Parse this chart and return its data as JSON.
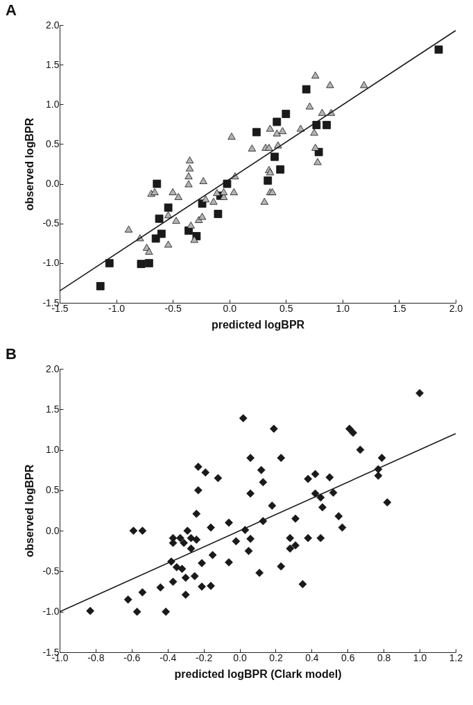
{
  "chart_data": [
    {
      "type": "scatter",
      "title": "A",
      "xlabel": "predicted logBPR",
      "ylabel": "observed logBPR",
      "xlim": [
        -1.5,
        2.0
      ],
      "ylim": [
        -1.5,
        2.0
      ],
      "xticks": [
        {
          "value": -1.5,
          "label": "-1.5"
        },
        {
          "value": -1.0,
          "label": "-1.0"
        },
        {
          "value": -0.5,
          "label": "-0.5"
        },
        {
          "value": 0,
          "label": "0.0"
        },
        {
          "value": 0.5,
          "label": "0.5"
        },
        {
          "value": 1.0,
          "label": "1.0"
        },
        {
          "value": 1.5,
          "label": "1.5"
        },
        {
          "value": 2.0,
          "label": "2.0"
        }
      ],
      "yticks": [
        {
          "value": -1.5,
          "label": "-1.5"
        },
        {
          "value": -1.0,
          "label": "-1.0"
        },
        {
          "value": -0.5,
          "label": "-0.5"
        },
        {
          "value": 0,
          "label": "0.0"
        },
        {
          "value": 0.5,
          "label": "0.5"
        },
        {
          "value": 1.0,
          "label": "1.0"
        },
        {
          "value": 1.5,
          "label": "1.5"
        },
        {
          "value": 2.0,
          "label": "2.0"
        }
      ],
      "series": [
        {
          "type": "scatter",
          "marker": "square",
          "color": "#1a1a1a",
          "x": [
            -1.14,
            -1.06,
            -0.78,
            -0.71,
            -0.65,
            -0.6,
            -0.62,
            -0.54,
            -0.64,
            -0.36,
            -0.29,
            -0.24,
            -0.1,
            -0.08,
            -0.02,
            0.24,
            0.68,
            0.5,
            0.42,
            0.77,
            0.86,
            0.4,
            0.45,
            0.34,
            0.79,
            1.85
          ],
          "values": [
            -1.29,
            -1.0,
            -1.01,
            -1.0,
            -0.69,
            -0.63,
            -0.44,
            -0.3,
            0.0,
            -0.59,
            -0.66,
            -0.25,
            -0.38,
            -0.15,
            0.0,
            0.65,
            1.19,
            0.88,
            0.78,
            0.74,
            0.74,
            0.34,
            0.18,
            0.04,
            0.4,
            1.69
          ]
        },
        {
          "type": "scatter",
          "marker": "triangle",
          "color": "#b4b4b4",
          "x": [
            -0.89,
            -0.79,
            -0.73,
            -0.71,
            -0.69,
            -0.66,
            -0.54,
            -0.54,
            -0.5,
            -0.47,
            -0.45,
            -0.35,
            -0.35,
            -0.36,
            -0.36,
            -0.34,
            -0.31,
            -0.27,
            -0.24,
            -0.23,
            -0.21,
            -0.14,
            -0.11,
            -0.05,
            -0.05,
            0.04,
            0.05,
            0.02,
            0.2,
            0.76,
            0.89,
            1.19,
            0.71,
            0.82,
            0.9,
            0.36,
            0.42,
            0.47,
            0.63,
            0.75,
            0.32,
            0.35,
            0.43,
            0.76,
            0.78,
            0.35,
            0.36,
            0.36,
            0.38,
            0.31
          ],
          "values": [
            -0.57,
            -0.68,
            -0.8,
            -0.85,
            -0.12,
            -0.1,
            -0.39,
            -0.76,
            -0.1,
            -0.46,
            -0.16,
            0.3,
            0.2,
            0.1,
            0.0,
            -0.52,
            -0.7,
            -0.45,
            -0.41,
            0.04,
            -0.19,
            -0.22,
            -0.11,
            -0.16,
            -0.1,
            -0.1,
            0.1,
            0.6,
            0.45,
            1.37,
            1.25,
            1.25,
            0.98,
            0.9,
            0.9,
            0.7,
            0.64,
            0.67,
            0.7,
            0.65,
            0.46,
            0.46,
            0.49,
            0.46,
            0.28,
            0.18,
            0.15,
            -0.1,
            -0.1,
            -0.22
          ]
        },
        {
          "type": "line",
          "color": "#1a1a1a",
          "x": [
            -1.5,
            2.0
          ],
          "values": [
            -1.35,
            1.93
          ]
        }
      ]
    },
    {
      "type": "scatter",
      "title": "B",
      "xlabel": "predicted logBPR (Clark model)",
      "ylabel": "observed logBPR",
      "xlim": [
        -1.0,
        1.2
      ],
      "ylim": [
        -1.5,
        2.0
      ],
      "xticks": [
        {
          "value": -1.0,
          "label": "-1.0"
        },
        {
          "value": -0.8,
          "label": "-0.8"
        },
        {
          "value": -0.6,
          "label": "-0.6"
        },
        {
          "value": -0.4,
          "label": "-0.4"
        },
        {
          "value": -0.2,
          "label": "-0.2"
        },
        {
          "value": 0,
          "label": "0.0"
        },
        {
          "value": 0.2,
          "label": "0.2"
        },
        {
          "value": 0.4,
          "label": "0.4"
        },
        {
          "value": 0.6,
          "label": "0.6"
        },
        {
          "value": 0.8,
          "label": "0.8"
        },
        {
          "value": 1.0,
          "label": "1.0"
        },
        {
          "value": 1.2,
          "label": "1.2"
        }
      ],
      "yticks": [
        {
          "value": -1.5,
          "label": "-1.5"
        },
        {
          "value": -1.0,
          "label": "-1.0"
        },
        {
          "value": -0.5,
          "label": "-0.5"
        },
        {
          "value": 0,
          "label": "0.0"
        },
        {
          "value": 0.5,
          "label": "0.5"
        },
        {
          "value": 1.0,
          "label": "1.0"
        },
        {
          "value": 1.5,
          "label": "1.5"
        },
        {
          "value": 2.0,
          "label": "2.0"
        }
      ],
      "series": [
        {
          "type": "scatter",
          "marker": "diamond",
          "color": "#1a1a1a",
          "x": [
            -0.83,
            -0.62,
            -0.57,
            -0.54,
            -0.59,
            -0.54,
            -0.44,
            -0.41,
            -0.37,
            -0.37,
            -0.33,
            -0.31,
            -0.29,
            -0.27,
            -0.24,
            -0.27,
            -0.38,
            -0.35,
            -0.32,
            -0.3,
            -0.37,
            -0.3,
            -0.25,
            -0.21,
            -0.16,
            -0.21,
            -0.15,
            -0.06,
            -0.16,
            -0.06,
            -0.24,
            -0.23,
            -0.23,
            -0.19,
            -0.12,
            0.02,
            0.06,
            0.06,
            0.03,
            0.06,
            -0.02,
            0.05,
            0.11,
            0.12,
            0.13,
            0.13,
            0.18,
            0.19,
            0.23,
            0.31,
            0.28,
            0.28,
            0.31,
            0.38,
            0.45,
            0.23,
            0.35,
            0.38,
            0.42,
            0.5,
            0.42,
            0.45,
            0.52,
            0.46,
            0.55,
            0.57,
            0.61,
            0.63,
            0.67,
            0.79,
            0.77,
            0.77,
            0.82,
            1.0
          ],
          "values": [
            -0.99,
            -0.85,
            -1.0,
            -0.76,
            0.0,
            0.0,
            -0.7,
            -1.0,
            -0.09,
            -0.15,
            -0.09,
            -0.15,
            0.0,
            -0.09,
            -0.11,
            -0.22,
            -0.38,
            -0.45,
            -0.47,
            -0.58,
            -0.63,
            -0.79,
            -0.56,
            -0.69,
            -0.68,
            -0.4,
            -0.3,
            -0.39,
            0.04,
            0.1,
            0.21,
            0.5,
            0.79,
            0.72,
            0.65,
            1.39,
            0.9,
            0.46,
            0.01,
            -0.1,
            -0.13,
            -0.25,
            -0.52,
            0.75,
            0.6,
            0.12,
            0.31,
            1.26,
            0.9,
            0.15,
            -0.09,
            -0.22,
            -0.18,
            -0.09,
            -0.09,
            -0.44,
            -0.66,
            0.64,
            0.7,
            0.66,
            0.46,
            0.41,
            0.47,
            0.29,
            0.18,
            0.04,
            1.26,
            1.21,
            1.0,
            0.9,
            0.76,
            0.68,
            0.35,
            1.7
          ]
        },
        {
          "type": "line",
          "color": "#1a1a1a",
          "x": [
            -1.0,
            1.2
          ],
          "values": [
            -1.0,
            1.2
          ]
        }
      ]
    }
  ]
}
